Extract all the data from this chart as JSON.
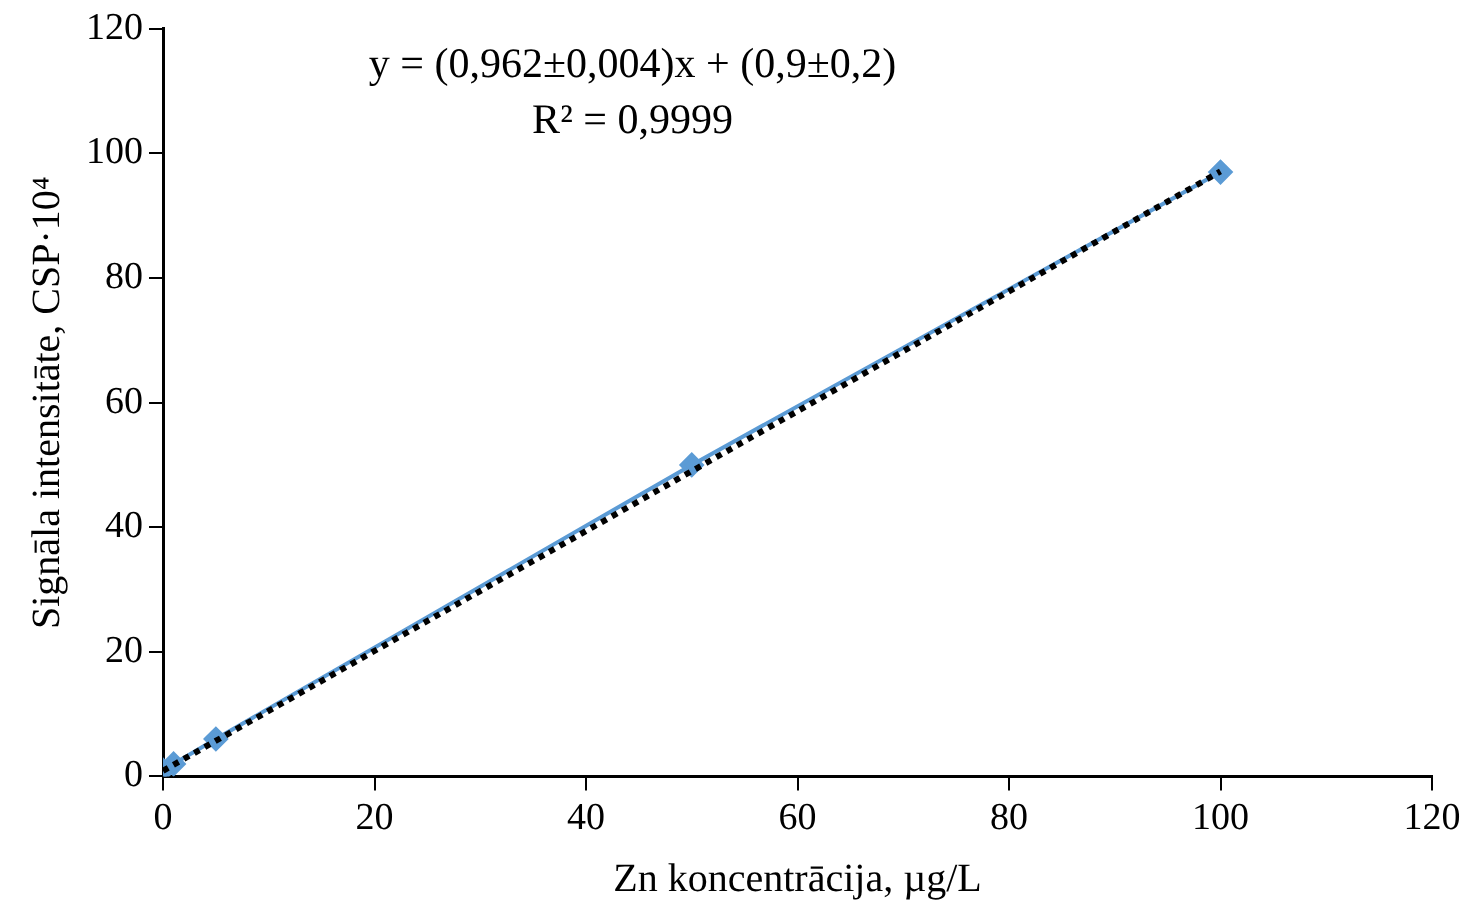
{
  "chart_data": {
    "type": "line",
    "xlabel": "Zn koncentrācija, µg/L",
    "ylabel": "Signāla intensitāte, CSP·10⁴",
    "annotations": [
      "y = (0,962±0,004)x + (0,9±0,2)",
      "R² = 0,9999"
    ],
    "series": [
      {
        "color": "#5b9bd5",
        "marker": "diamond",
        "line_style": "solid",
        "x": [
          0,
          1,
          5,
          50,
          100
        ],
        "values": [
          1,
          2,
          6,
          50,
          97
        ]
      },
      {
        "color": "#000000",
        "marker": "none",
        "line_style": "dotted",
        "x": [
          0,
          100
        ],
        "values": [
          0.9,
          97.1
        ]
      }
    ],
    "xlim": [
      0,
      120
    ],
    "xticks": [
      0,
      20,
      40,
      60,
      80,
      100,
      120
    ],
    "ylim": [
      0,
      120
    ],
    "yticks": [
      0,
      20,
      40,
      60,
      80,
      100,
      120
    ],
    "grid": false,
    "legend": false
  }
}
